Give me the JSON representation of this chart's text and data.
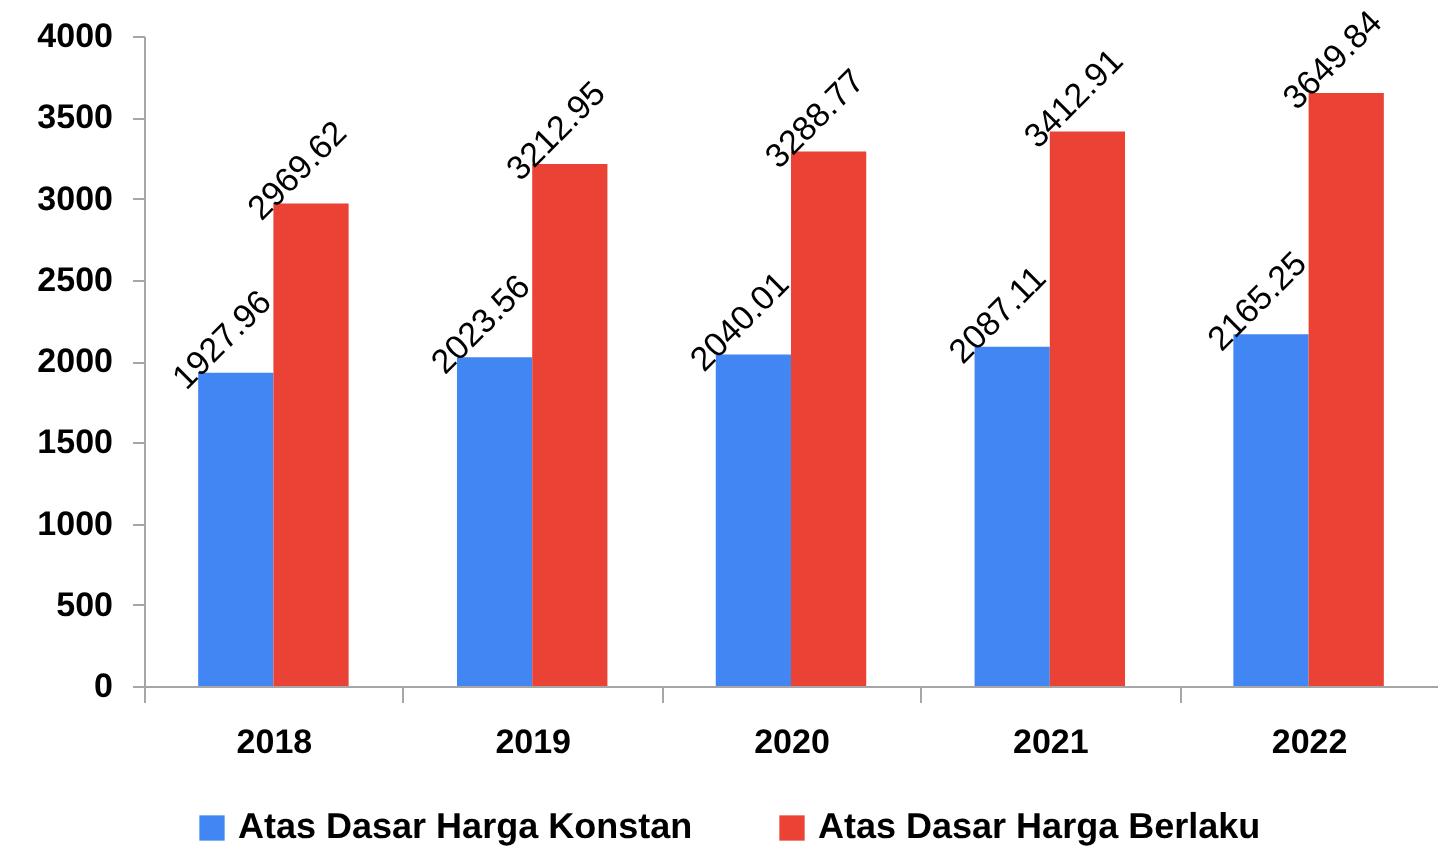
{
  "chart_data": {
    "type": "bar",
    "categories": [
      "2018",
      "2019",
      "2020",
      "2021",
      "2022"
    ],
    "series": [
      {
        "name": "Atas Dasar Harga Konstan",
        "color": "#4286f4",
        "values": [
          1927.96,
          2023.56,
          2040.01,
          2087.11,
          2165.25
        ]
      },
      {
        "name": "Atas Dasar Harga Berlaku",
        "color": "#ea4335",
        "values": [
          2969.62,
          3212.95,
          3288.77,
          3412.91,
          3649.84
        ]
      }
    ],
    "ylim": [
      0,
      4000
    ],
    "yticks": [
      0,
      500,
      1000,
      1500,
      2000,
      2500,
      3000,
      3500,
      4000
    ],
    "grid": false,
    "legend": "bottom",
    "data_labels": true
  }
}
